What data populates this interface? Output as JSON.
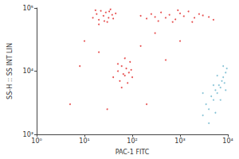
{
  "chart_data": {
    "type": "scatter",
    "x_label": "PAC-1 FITC",
    "y_label": "SS-H :: SS INT LIN",
    "log": true,
    "grid": false,
    "xlim": [
      1,
      10000
    ],
    "ylim": [
      1000,
      100000
    ],
    "xticks": [
      {
        "value": 1,
        "label": "10⁰"
      },
      {
        "value": 10,
        "label": "10¹"
      },
      {
        "value": 100,
        "label": "10²"
      },
      {
        "value": 1000,
        "label": "10³"
      },
      {
        "value": 10000,
        "label": "10⁴"
      }
    ],
    "yticks": [
      {
        "value": 1000,
        "label": "10³"
      },
      {
        "value": 10000,
        "label": "10⁴"
      },
      {
        "value": 100000,
        "label": "10⁵"
      }
    ],
    "series": [
      {
        "color": "#e02424",
        "x": [
          15,
          18,
          20,
          22,
          25,
          28,
          30,
          32,
          35,
          38,
          40,
          45,
          20,
          26,
          33,
          17,
          150,
          200,
          250,
          300,
          400,
          500,
          600,
          800,
          1000,
          1200,
          1500,
          2000,
          2500,
          3000,
          700,
          350,
          1800,
          900,
          4000,
          5000,
          40,
          50,
          55,
          60,
          65,
          70,
          75,
          80,
          85,
          90,
          60,
          100,
          70,
          50,
          95,
          10,
          20,
          5,
          150,
          300,
          200,
          30,
          8,
          500,
          1000
        ],
        "y": [
          70000,
          80000,
          65000,
          90000,
          75000,
          85000,
          60000,
          70000,
          95000,
          78000,
          68000,
          82000,
          55000,
          62000,
          88000,
          92000,
          75000,
          68000,
          80000,
          72000,
          85000,
          70000,
          78000,
          66000,
          82000,
          74000,
          88000,
          70000,
          80000,
          76000,
          60000,
          62000,
          60000,
          92000,
          72000,
          65000,
          8000,
          10000,
          7000,
          12000,
          9000,
          8500,
          11000,
          6500,
          9500,
          14000,
          5500,
          8000,
          16000,
          13000,
          10500,
          30000,
          20000,
          3000,
          25000,
          40000,
          3000,
          2500,
          12000,
          15000,
          30000
        ]
      },
      {
        "color": "#6ab4cc",
        "x": [
          3000,
          3500,
          4000,
          4500,
          5000,
          5500,
          6000,
          6500,
          7000,
          7500,
          8000,
          8500,
          9000,
          9500,
          4000,
          5000,
          7000,
          6000,
          8000,
          3000,
          9000,
          5500
        ],
        "y": [
          2000,
          3000,
          2500,
          4000,
          3500,
          5000,
          4500,
          6000,
          5500,
          7000,
          8000,
          6500,
          9500,
          11000,
          1500,
          6000,
          3500,
          8500,
          12000,
          4500,
          5000,
          2200
        ]
      }
    ]
  }
}
